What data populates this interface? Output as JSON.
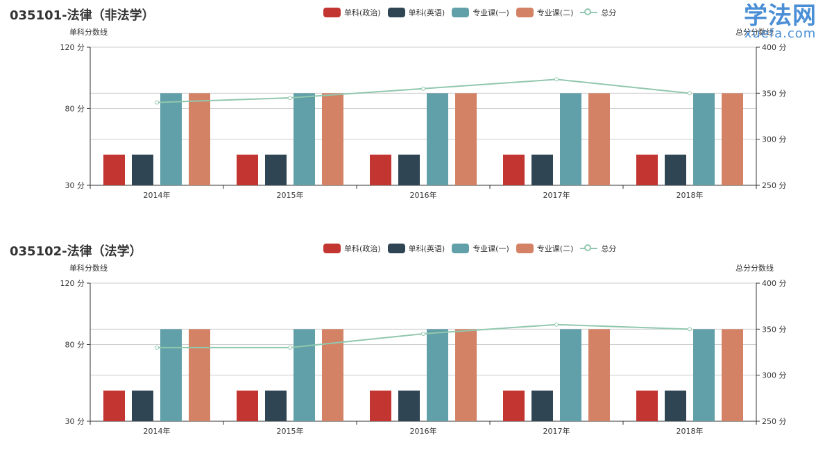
{
  "watermark": {
    "brand": "学法网",
    "domain": "xuefa.com"
  },
  "legend_colors": [
    "#c23531",
    "#2f4554",
    "#61a0a8",
    "#d48265",
    "#91c7ae"
  ],
  "chart_data": [
    {
      "type": "bar",
      "title": "035101-法律（非法学）",
      "categories": [
        "2014年",
        "2015年",
        "2016年",
        "2017年",
        "2018年"
      ],
      "ylabel": "单科分数线",
      "ylabel_right": "总分分数线",
      "ylim": [
        30,
        120
      ],
      "ylim_right": [
        250,
        400
      ],
      "yticks": [
        "120 分",
        "80 分",
        "30 分"
      ],
      "yticks_right": [
        "400 分",
        "350 分",
        "300 分",
        "250 分"
      ],
      "legend_position": "top-center",
      "grid": true,
      "series": [
        {
          "name": "单科(政治)",
          "type": "bar",
          "axis": "left",
          "values": [
            50,
            50,
            50,
            50,
            50
          ]
        },
        {
          "name": "单科(英语)",
          "type": "bar",
          "axis": "left",
          "values": [
            50,
            50,
            50,
            50,
            50
          ]
        },
        {
          "name": "专业课(一)",
          "type": "bar",
          "axis": "left",
          "values": [
            90,
            90,
            90,
            90,
            90
          ]
        },
        {
          "name": "专业课(二)",
          "type": "bar",
          "axis": "left",
          "values": [
            90,
            90,
            90,
            90,
            90
          ]
        },
        {
          "name": "总分",
          "type": "line",
          "axis": "right",
          "values": [
            340,
            345,
            355,
            365,
            350
          ]
        }
      ]
    },
    {
      "type": "bar",
      "title": "035102-法律（法学）",
      "categories": [
        "2014年",
        "2015年",
        "2016年",
        "2017年",
        "2018年"
      ],
      "ylabel": "单科分数线",
      "ylabel_right": "总分分数线",
      "ylim": [
        30,
        120
      ],
      "ylim_right": [
        250,
        400
      ],
      "yticks": [
        "120 分",
        "80 分",
        "30 分"
      ],
      "yticks_right": [
        "400 分",
        "350 分",
        "300 分",
        "250 分"
      ],
      "legend_position": "top-center",
      "grid": true,
      "series": [
        {
          "name": "单科(政治)",
          "type": "bar",
          "axis": "left",
          "values": [
            50,
            50,
            50,
            50,
            50
          ]
        },
        {
          "name": "单科(英语)",
          "type": "bar",
          "axis": "left",
          "values": [
            50,
            50,
            50,
            50,
            50
          ]
        },
        {
          "name": "专业课(一)",
          "type": "bar",
          "axis": "left",
          "values": [
            90,
            90,
            90,
            90,
            90
          ]
        },
        {
          "name": "专业课(二)",
          "type": "bar",
          "axis": "left",
          "values": [
            90,
            90,
            90,
            90,
            90
          ]
        },
        {
          "name": "总分",
          "type": "line",
          "axis": "right",
          "values": [
            330,
            330,
            345,
            355,
            350
          ]
        }
      ]
    }
  ]
}
